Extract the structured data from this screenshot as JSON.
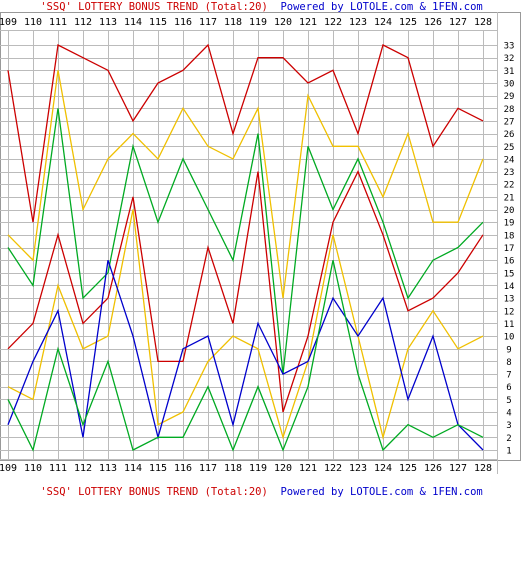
{
  "header": {
    "title": "'SSQ' LOTTERY BONUS TREND (Total:20)",
    "powered": "Powered by LOTOLE.com & 1FEN.com"
  },
  "footer": {
    "title": "'SSQ' LOTTERY BONUS TREND (Total:20)",
    "powered": "Powered by LOTOLE.com & 1FEN.com"
  },
  "chart_data": {
    "type": "line",
    "title": "'SSQ' LOTTERY BONUS TREND (Total:20)",
    "categories": [
      "109",
      "110",
      "111",
      "112",
      "113",
      "114",
      "115",
      "116",
      "117",
      "118",
      "119",
      "120",
      "121",
      "122",
      "123",
      "124",
      "125",
      "126",
      "127",
      "128"
    ],
    "y_ticks": [
      1,
      2,
      3,
      4,
      5,
      6,
      7,
      8,
      9,
      10,
      11,
      12,
      13,
      14,
      15,
      16,
      17,
      18,
      19,
      20,
      21,
      22,
      23,
      24,
      25,
      26,
      27,
      28,
      29,
      30,
      31,
      32,
      33
    ],
    "ylim": [
      1,
      33
    ],
    "grid": true,
    "colors": {
      "red": "#cc0000",
      "orange": "#f0c000",
      "green": "#00aa22",
      "blue": "#0000cc",
      "grid": "#bbbbbb"
    },
    "series": [
      {
        "color": "#cc0000",
        "values": [
          31,
          19,
          33,
          32,
          31,
          27,
          30,
          31,
          33,
          26,
          32,
          32,
          30,
          31,
          26,
          33,
          32,
          25,
          28,
          27
        ]
      },
      {
        "color": "#f0c000",
        "values": [
          18,
          16,
          31,
          20,
          24,
          26,
          24,
          28,
          25,
          24,
          28,
          13,
          29,
          25,
          25,
          21,
          26,
          19,
          19,
          24
        ]
      },
      {
        "color": "#00aa22",
        "values": [
          17,
          14,
          28,
          13,
          15,
          25,
          19,
          24,
          20,
          16,
          26,
          7,
          25,
          20,
          24,
          19,
          13,
          16,
          17,
          19
        ]
      },
      {
        "color": "#cc0000",
        "values": [
          9,
          11,
          18,
          11,
          13,
          21,
          8,
          8,
          17,
          11,
          23,
          4,
          10,
          19,
          23,
          18,
          12,
          13,
          15,
          18
        ]
      },
      {
        "color": "#f0c000",
        "values": [
          6,
          5,
          14,
          9,
          10,
          20,
          3,
          4,
          8,
          10,
          9,
          2,
          8,
          18,
          10,
          2,
          9,
          12,
          9,
          10
        ]
      },
      {
        "color": "#0000cc",
        "values": [
          3,
          8,
          12,
          2,
          16,
          10,
          2,
          9,
          10,
          3,
          11,
          7,
          8,
          13,
          10,
          13,
          5,
          10,
          3,
          1
        ]
      },
      {
        "color": "#00aa22",
        "values": [
          5,
          1,
          9,
          3,
          8,
          1,
          2,
          2,
          6,
          1,
          6,
          1,
          6,
          16,
          7,
          1,
          3,
          2,
          3,
          2
        ]
      }
    ]
  }
}
